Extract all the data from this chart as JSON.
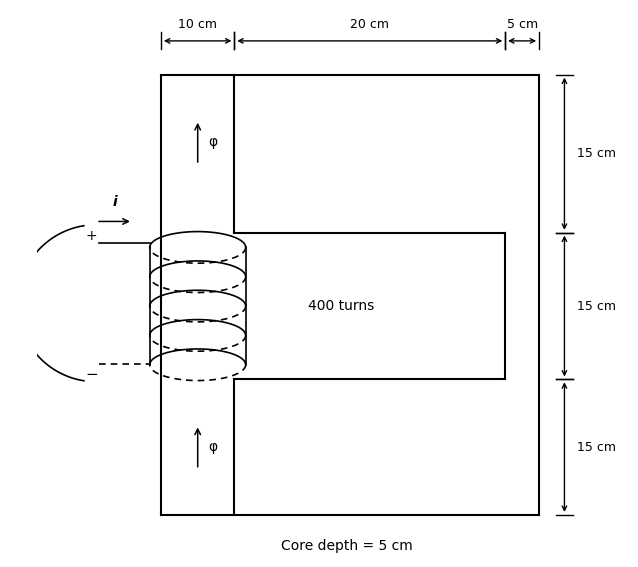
{
  "bg_color": "#ffffff",
  "line_color": "#000000",
  "figure_size": [
    6.38,
    5.67
  ],
  "dpi": 100,
  "dim_10cm": "10 cm",
  "dim_20cm": "20 cm",
  "dim_5cm_top": "5 cm",
  "dim_15cm_top": "15 cm",
  "dim_15cm_mid": "15 cm",
  "dim_15cm_bot": "15 cm",
  "turns_label": "400 turns",
  "core_depth_label": "Core depth = 5 cm",
  "phi_label": "φ",
  "i_label": "i",
  "plus_label": "+",
  "minus_label": "−"
}
